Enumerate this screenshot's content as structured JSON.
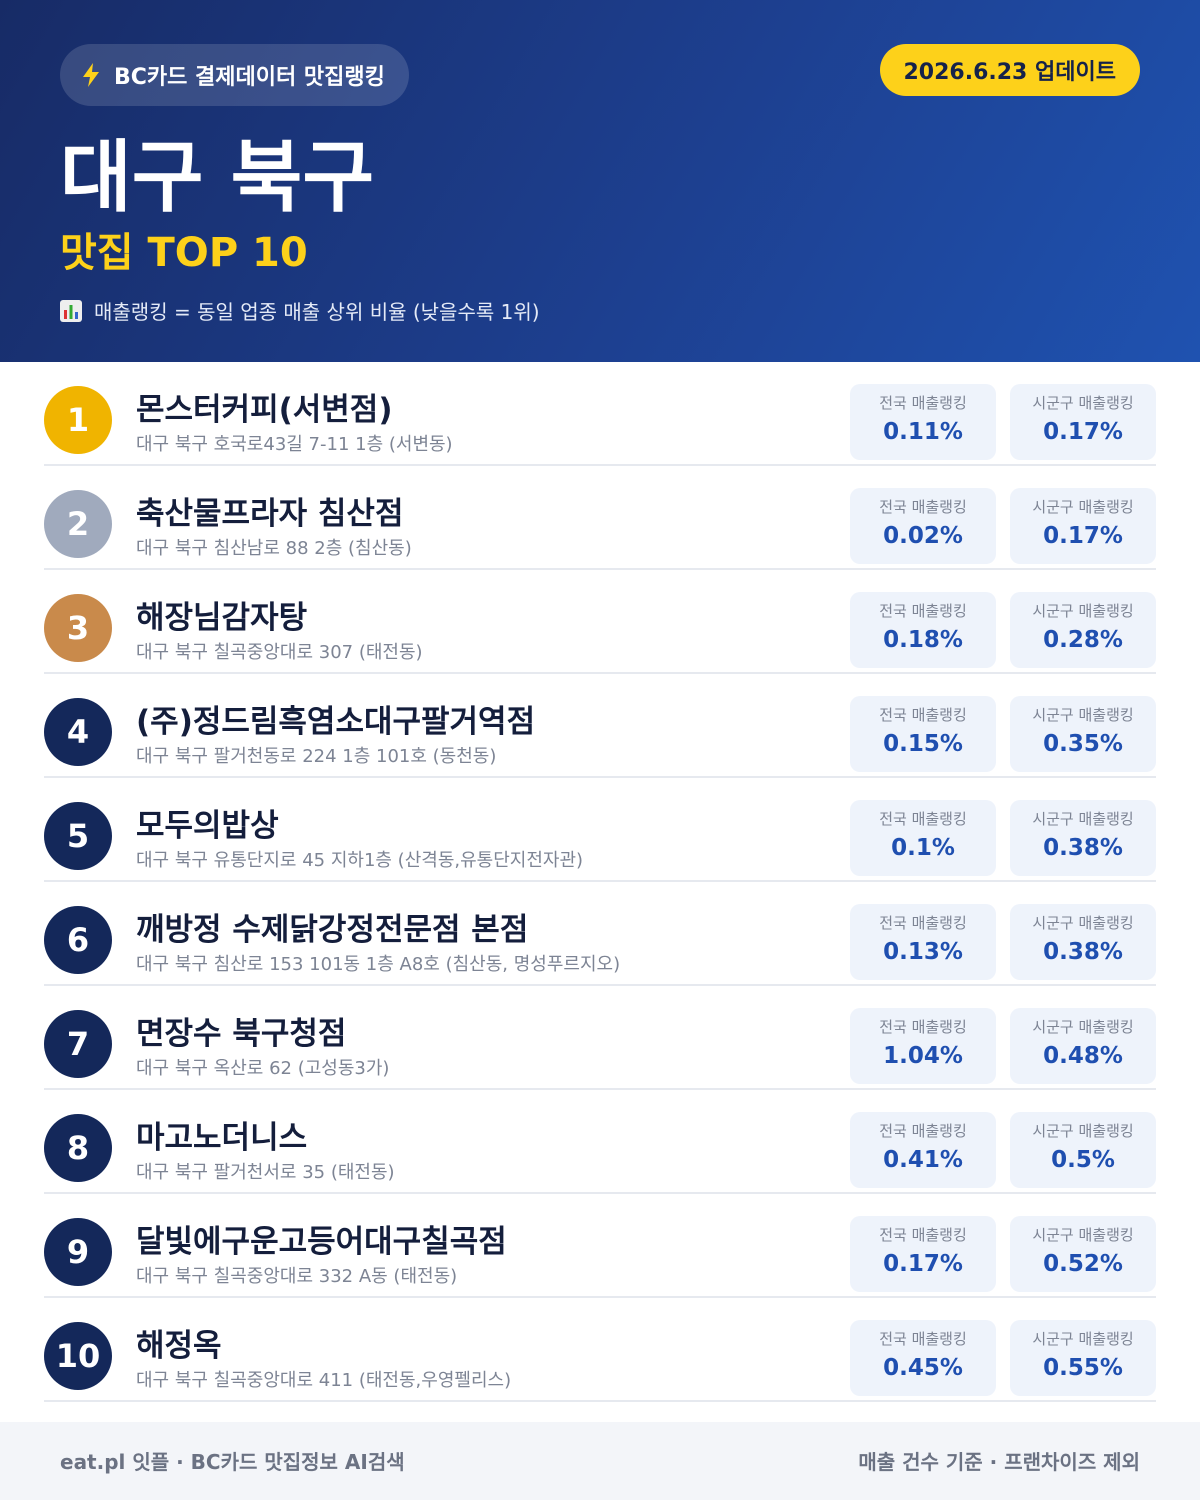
{
  "header": {
    "badge": "BC카드 결제데이터 맛집랭킹",
    "update": "2026.6.23 업데이트",
    "title": "대구 북구",
    "subtitle": "맛집 TOP 10",
    "note": "매출랭킹 = 동일 업종 매출 상위 비율 (낮을수록 1위)"
  },
  "columns": [
    "전국 매출랭킹",
    "시군구 매출랭킹"
  ],
  "items": [
    {
      "rank": "1",
      "name": "몬스터커피(서변점)",
      "address": "대구 북구 호국로43길 7-11 1층 (서변동)",
      "national": "0.11%",
      "local": "0.17%"
    },
    {
      "rank": "2",
      "name": "축산물프라자 침산점",
      "address": "대구 북구 침산남로 88 2층 (침산동)",
      "national": "0.02%",
      "local": "0.17%"
    },
    {
      "rank": "3",
      "name": "해장님감자탕",
      "address": "대구 북구 칠곡중앙대로 307 (태전동)",
      "national": "0.18%",
      "local": "0.28%"
    },
    {
      "rank": "4",
      "name": "(주)정드림흑염소대구팔거역점",
      "address": "대구 북구 팔거천동로 224 1층 101호 (동천동)",
      "national": "0.15%",
      "local": "0.35%"
    },
    {
      "rank": "5",
      "name": "모두의밥상",
      "address": "대구 북구 유통단지로 45 지하1층 (산격동,유통단지전자관)",
      "national": "0.1%",
      "local": "0.38%"
    },
    {
      "rank": "6",
      "name": "깨방정 수제닭강정전문점 본점",
      "address": "대구 북구 침산로 153 101동 1층 A8호 (침산동, 명성푸르지오)",
      "national": "0.13%",
      "local": "0.38%"
    },
    {
      "rank": "7",
      "name": "면장수 북구청점",
      "address": "대구 북구 옥산로 62 (고성동3가)",
      "national": "1.04%",
      "local": "0.48%"
    },
    {
      "rank": "8",
      "name": "마고노더니스",
      "address": "대구 북구 팔거천서로 35 (태전동)",
      "national": "0.41%",
      "local": "0.5%"
    },
    {
      "rank": "9",
      "name": "달빛에구운고등어대구칠곡점",
      "address": "대구 북구 칠곡중앙대로 332 A동 (태전동)",
      "national": "0.17%",
      "local": "0.52%"
    },
    {
      "rank": "10",
      "name": "해정옥",
      "address": "대구 북구 칠곡중앙대로 411 (태전동,우영펠리스)",
      "national": "0.45%",
      "local": "0.55%"
    }
  ],
  "footer": {
    "left": "eat.pl 잇플 · BC카드 맛집정보 AI검색",
    "right": "매출 건수 기준 · 프랜차이즈 제외"
  }
}
